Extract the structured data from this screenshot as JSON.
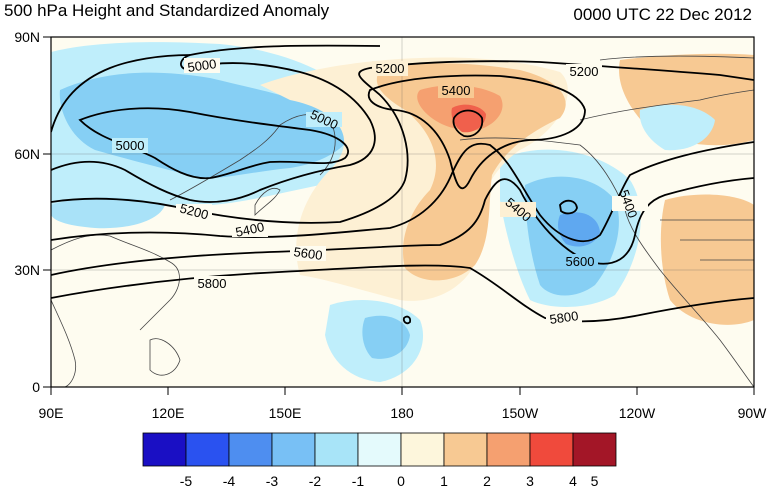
{
  "title_left": "500 hPa Height and Standardized Anomaly",
  "title_right": "0000 UTC 22 Dec 2012",
  "lat_labels": [
    "90N",
    "60N",
    "30N",
    "0"
  ],
  "lon_labels": [
    "90E",
    "120E",
    "150E",
    "180",
    "150W",
    "120W",
    "90W"
  ],
  "contour_labels": [
    "5000",
    "5000",
    "5000",
    "5200",
    "5200",
    "5200",
    "5400",
    "5400",
    "5400",
    "5400",
    "5600",
    "5600",
    "5800",
    "5800"
  ],
  "colorbar": {
    "labels": [
      "-5",
      "-4",
      "-3",
      "-2",
      "-1",
      "0",
      "1",
      "2",
      "3",
      "4",
      "5"
    ],
    "colors": [
      "#1a0fc4",
      "#2a52f0",
      "#4e8ef0",
      "#78c0f5",
      "#a8e4f8",
      "#e4fafc",
      "#fdf6dc",
      "#f7c993",
      "#f5a070",
      "#f04a3c",
      "#a31627"
    ]
  }
}
